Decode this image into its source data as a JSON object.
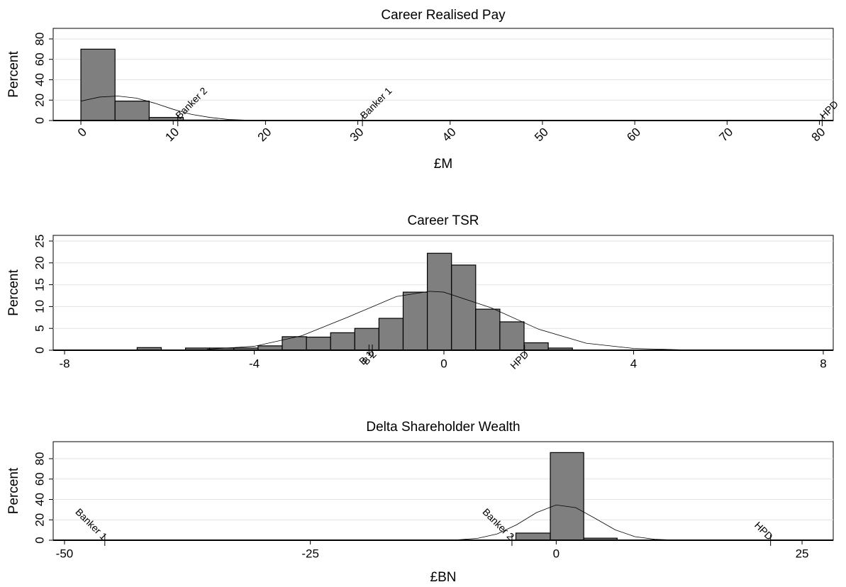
{
  "chart_data": [
    {
      "type": "histogram",
      "title": "Career Realised Pay",
      "x_label": "£M",
      "y_label": "Percent",
      "bins": [
        0,
        3.7,
        7.4,
        11.1,
        14.8
      ],
      "values": [
        70,
        19,
        3,
        0.5
      ],
      "color": "#7f7f7f",
      "curve": {
        "x": [
          0,
          2,
          4,
          6,
          8,
          10,
          12,
          14,
          16,
          18
        ],
        "y": [
          19,
          23,
          24,
          22,
          17,
          11,
          6,
          3,
          1,
          0.3
        ]
      },
      "annotations": [
        {
          "text": "Banker 2",
          "x": 10.5
        },
        {
          "text": "Banker 1",
          "x": 30.5
        },
        {
          "text": "HPD",
          "x": 80.3
        }
      ],
      "xlim": [
        -3,
        81.5
      ],
      "ylim": [
        0,
        90.4
      ],
      "xticks": [
        0,
        10,
        20,
        30,
        40,
        50,
        60,
        70,
        80
      ],
      "yticks": [
        0,
        20,
        40,
        60,
        80
      ],
      "grid": true
    },
    {
      "type": "histogram",
      "title": "Career TSR",
      "y_label": "Percent",
      "bins": [
        -6.47,
        -5.96,
        -5.45,
        -4.94,
        -4.43,
        -3.92,
        -3.41,
        -2.9,
        -2.39,
        -1.88,
        -1.37,
        -0.86,
        -0.35,
        0.16,
        0.67,
        1.18,
        1.69,
        2.2,
        2.71
      ],
      "values": [
        0.6,
        0,
        0.5,
        0.5,
        0.5,
        1,
        3.1,
        3,
        4,
        5,
        7.3,
        13.3,
        22.2,
        19.5,
        9.4,
        6.5,
        1.7,
        0.5
      ],
      "color": "#7f7f7f",
      "curve": {
        "x": [
          -5,
          -4,
          -3,
          -2,
          -1,
          -0.3,
          0,
          1,
          2,
          3,
          4,
          5
        ],
        "y": [
          0.2,
          0.9,
          3.3,
          7.7,
          12.3,
          13.5,
          13.3,
          9.7,
          4.8,
          1.6,
          0.4,
          0.1
        ]
      },
      "annotations": [
        {
          "text": "B 1",
          "x": -1.58
        },
        {
          "text": "B 2",
          "x": -1.51
        },
        {
          "text": "HPD",
          "x": 1.7
        }
      ],
      "xlim": [
        -8.24,
        8.21
      ],
      "ylim": [
        0,
        26.3
      ],
      "xticks": [
        -8,
        -4,
        0,
        4,
        8
      ],
      "yticks": [
        0,
        5,
        10,
        15,
        20,
        25
      ],
      "grid": true
    },
    {
      "type": "histogram",
      "title": "Delta Shareholder Wealth",
      "x_label": "£BN",
      "y_label": "Percent",
      "bins": [
        -4.1,
        -0.6,
        2.8,
        6.2
      ],
      "values": [
        7,
        86,
        2
      ],
      "color": "#7f7f7f",
      "curve": {
        "x": [
          -10,
          -8,
          -6,
          -4,
          -2,
          0,
          2,
          4,
          6,
          8,
          10,
          12
        ],
        "y": [
          0.4,
          1.8,
          6.2,
          15.3,
          27.1,
          34.6,
          31.9,
          21.2,
          10.2,
          3.5,
          0.9,
          0.2
        ]
      },
      "annotations": [
        {
          "text": "Banker 1",
          "x": -45.9
        },
        {
          "text": "Banker 2",
          "x": -4.5
        },
        {
          "text": "HPD",
          "x": 21.8
        }
      ],
      "xlim": [
        -51.15,
        28.17
      ],
      "ylim": [
        0,
        96.7
      ],
      "xticks": [
        -50,
        -25,
        0,
        25
      ],
      "yticks": [
        0,
        20,
        40,
        60,
        80
      ],
      "grid": true
    }
  ]
}
